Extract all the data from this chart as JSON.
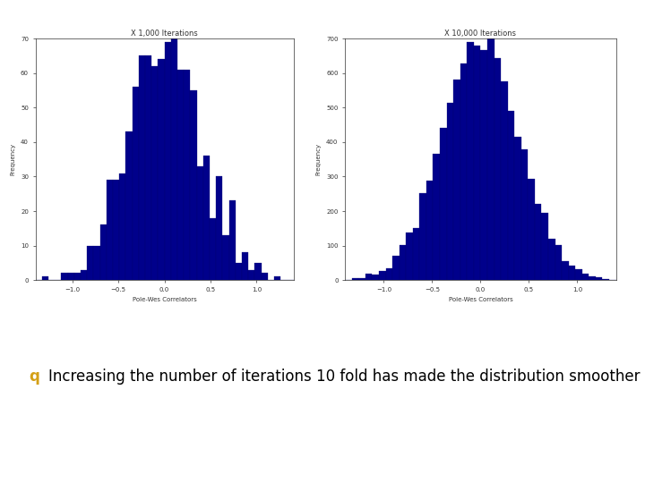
{
  "title1": "X 1,000 Iterations",
  "title2": "X 10,000 Iterations",
  "xlabel": "Pole-Wes Correlators",
  "ylabel": "Frequency",
  "bar_color": "#00008B",
  "bar_edgecolor": "#00006B",
  "xlim1": [
    -1.4,
    1.4
  ],
  "xlim2": [
    -1.4,
    1.4
  ],
  "ylim1": [
    0,
    70
  ],
  "ylim2": [
    0,
    700
  ],
  "n1": 1000,
  "n2": 10000,
  "seed1": 42,
  "seed2": 42,
  "bins": 40,
  "annotation_text": "Increasing the number of iterations 10 fold has made the distribution smoother",
  "bullet_char": "q",
  "bullet_color": "#D4A017",
  "text_color": "#000000",
  "bg_color": "#ffffff",
  "font_size_title": 6,
  "font_size_axis": 5,
  "font_size_tick": 5,
  "font_size_annot": 12,
  "font_size_bullet": 12
}
